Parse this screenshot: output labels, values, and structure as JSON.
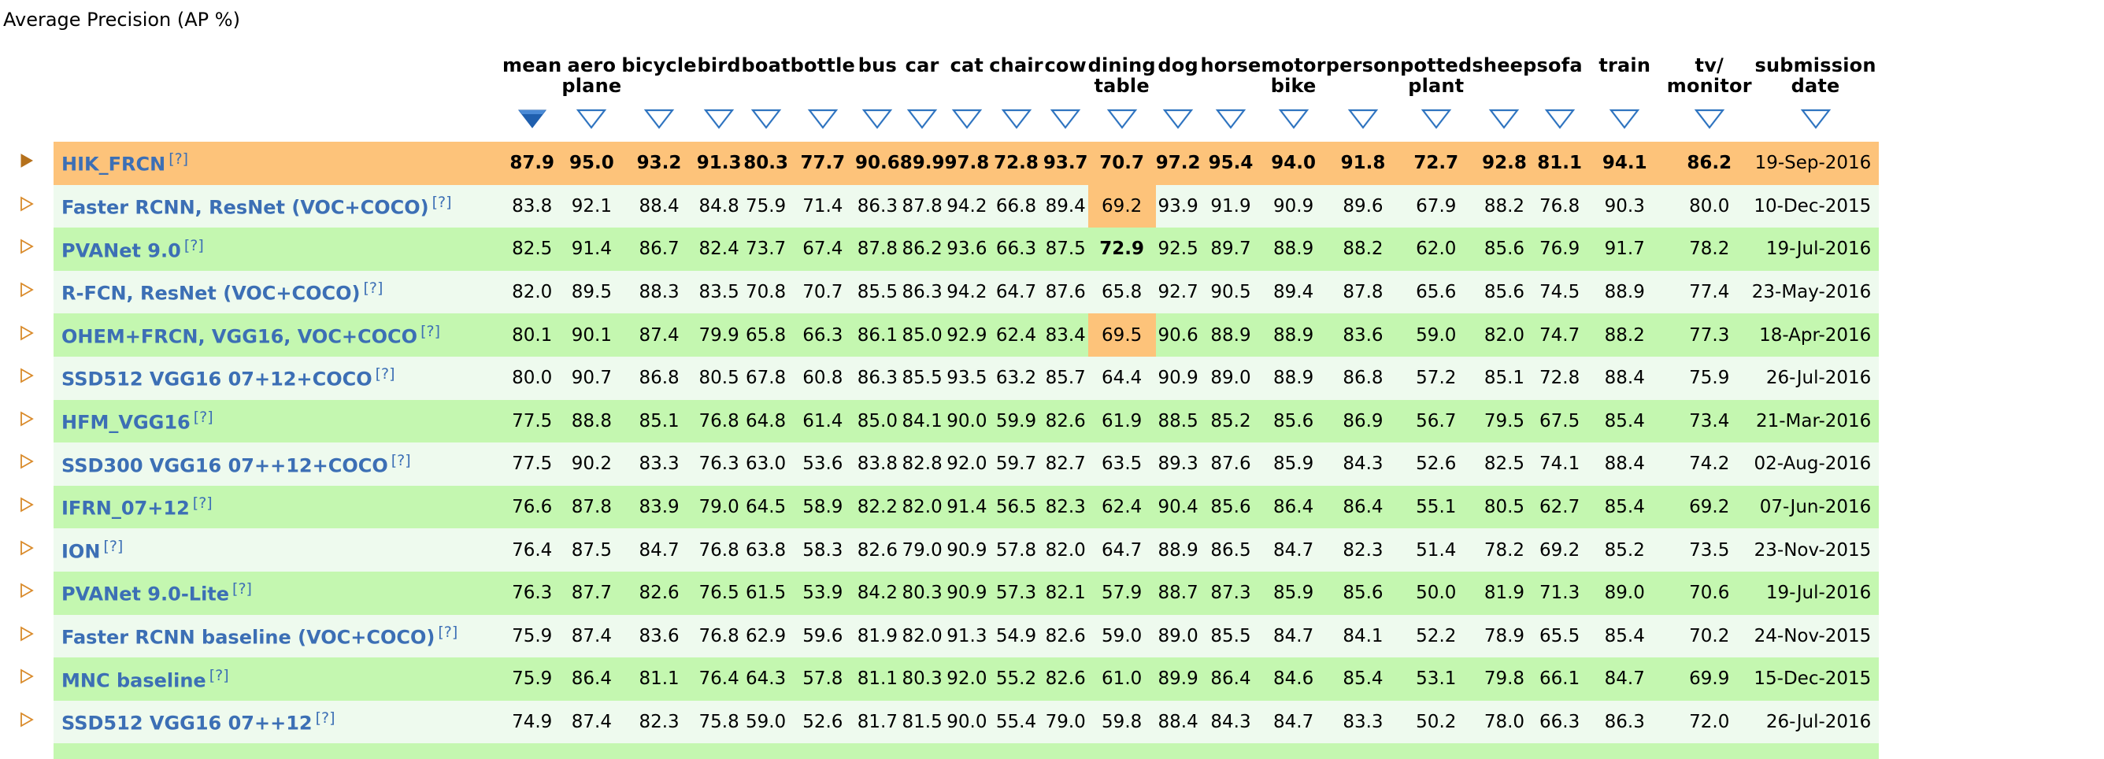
{
  "title": "Average Precision (AP %)",
  "columns": [
    {
      "key": "mean",
      "l1": "mean",
      "l2": ""
    },
    {
      "key": "aeroplane",
      "l1": "aero",
      "l2": "plane"
    },
    {
      "key": "bicycle",
      "l1": "bicycle",
      "l2": ""
    },
    {
      "key": "bird",
      "l1": "bird",
      "l2": ""
    },
    {
      "key": "boat",
      "l1": "boat",
      "l2": ""
    },
    {
      "key": "bottle",
      "l1": "bottle",
      "l2": ""
    },
    {
      "key": "bus",
      "l1": "bus",
      "l2": ""
    },
    {
      "key": "car",
      "l1": "car",
      "l2": ""
    },
    {
      "key": "cat",
      "l1": "cat",
      "l2": ""
    },
    {
      "key": "chair",
      "l1": "chair",
      "l2": ""
    },
    {
      "key": "cow",
      "l1": "cow",
      "l2": ""
    },
    {
      "key": "diningtable",
      "l1": "dining",
      "l2": "table"
    },
    {
      "key": "dog",
      "l1": "dog",
      "l2": ""
    },
    {
      "key": "horse",
      "l1": "horse",
      "l2": ""
    },
    {
      "key": "motorbike",
      "l1": "motor",
      "l2": "bike"
    },
    {
      "key": "person",
      "l1": "person",
      "l2": ""
    },
    {
      "key": "pottedplant",
      "l1": "potted",
      "l2": "plant"
    },
    {
      "key": "sheep",
      "l1": "sheep",
      "l2": ""
    },
    {
      "key": "sofa",
      "l1": "sofa",
      "l2": ""
    },
    {
      "key": "train",
      "l1": "train",
      "l2": ""
    },
    {
      "key": "tvmonitor",
      "l1": "tv/",
      "l2": "monitor"
    },
    {
      "key": "date",
      "l1": "submission",
      "l2": "date"
    }
  ],
  "sort_column": "mean",
  "colors": {
    "highlight": "#fdc37a",
    "row_green": "#c4f7b0",
    "row_light": "#eefaee",
    "link": "#3c6fb5",
    "arrow": "#2f74c0"
  },
  "help_marker": "[?]",
  "rows": [
    {
      "name": "HIK_FRCN",
      "values": [
        "87.9",
        "95.0",
        "93.2",
        "91.3",
        "80.3",
        "77.7",
        "90.6",
        "89.9",
        "97.8",
        "72.8",
        "93.7",
        "70.7",
        "97.2",
        "95.4",
        "94.0",
        "91.8",
        "72.7",
        "92.8",
        "81.1",
        "94.1",
        "86.2"
      ],
      "date": "19-Sep-2016"
    },
    {
      "name": "Faster RCNN, ResNet (VOC+COCO)",
      "values": [
        "83.8",
        "92.1",
        "88.4",
        "84.8",
        "75.9",
        "71.4",
        "86.3",
        "87.8",
        "94.2",
        "66.8",
        "89.4",
        "69.2",
        "93.9",
        "91.9",
        "90.9",
        "89.6",
        "67.9",
        "88.2",
        "76.8",
        "90.3",
        "80.0"
      ],
      "date": "10-Dec-2015"
    },
    {
      "name": "PVANet 9.0",
      "values": [
        "82.5",
        "91.4",
        "86.7",
        "82.4",
        "73.7",
        "67.4",
        "87.8",
        "86.2",
        "93.6",
        "66.3",
        "87.5",
        "72.9",
        "92.5",
        "89.7",
        "88.9",
        "88.2",
        "62.0",
        "85.6",
        "76.9",
        "91.7",
        "78.2"
      ],
      "date": "19-Jul-2016"
    },
    {
      "name": "R-FCN, ResNet (VOC+COCO)",
      "values": [
        "82.0",
        "89.5",
        "88.3",
        "83.5",
        "70.8",
        "70.7",
        "85.5",
        "86.3",
        "94.2",
        "64.7",
        "87.6",
        "65.8",
        "92.7",
        "90.5",
        "89.4",
        "87.8",
        "65.6",
        "85.6",
        "74.5",
        "88.9",
        "77.4"
      ],
      "date": "23-May-2016"
    },
    {
      "name": "OHEM+FRCN, VGG16, VOC+COCO",
      "values": [
        "80.1",
        "90.1",
        "87.4",
        "79.9",
        "65.8",
        "66.3",
        "86.1",
        "85.0",
        "92.9",
        "62.4",
        "83.4",
        "69.5",
        "90.6",
        "88.9",
        "88.9",
        "83.6",
        "59.0",
        "82.0",
        "74.7",
        "88.2",
        "77.3"
      ],
      "date": "18-Apr-2016"
    },
    {
      "name": "SSD512 VGG16 07+12+COCO",
      "values": [
        "80.0",
        "90.7",
        "86.8",
        "80.5",
        "67.8",
        "60.8",
        "86.3",
        "85.5",
        "93.5",
        "63.2",
        "85.7",
        "64.4",
        "90.9",
        "89.0",
        "88.9",
        "86.8",
        "57.2",
        "85.1",
        "72.8",
        "88.4",
        "75.9"
      ],
      "date": "26-Jul-2016"
    },
    {
      "name": "HFM_VGG16",
      "values": [
        "77.5",
        "88.8",
        "85.1",
        "76.8",
        "64.8",
        "61.4",
        "85.0",
        "84.1",
        "90.0",
        "59.9",
        "82.6",
        "61.9",
        "88.5",
        "85.2",
        "85.6",
        "86.9",
        "56.7",
        "79.5",
        "67.5",
        "85.4",
        "73.4"
      ],
      "date": "21-Mar-2016"
    },
    {
      "name": "SSD300 VGG16 07++12+COCO",
      "values": [
        "77.5",
        "90.2",
        "83.3",
        "76.3",
        "63.0",
        "53.6",
        "83.8",
        "82.8",
        "92.0",
        "59.7",
        "82.7",
        "63.5",
        "89.3",
        "87.6",
        "85.9",
        "84.3",
        "52.6",
        "82.5",
        "74.1",
        "88.4",
        "74.2"
      ],
      "date": "02-Aug-2016"
    },
    {
      "name": "IFRN_07+12",
      "values": [
        "76.6",
        "87.8",
        "83.9",
        "79.0",
        "64.5",
        "58.9",
        "82.2",
        "82.0",
        "91.4",
        "56.5",
        "82.3",
        "62.4",
        "90.4",
        "85.6",
        "86.4",
        "86.4",
        "55.1",
        "80.5",
        "62.7",
        "85.4",
        "69.2"
      ],
      "date": "07-Jun-2016"
    },
    {
      "name": "ION",
      "values": [
        "76.4",
        "87.5",
        "84.7",
        "76.8",
        "63.8",
        "58.3",
        "82.6",
        "79.0",
        "90.9",
        "57.8",
        "82.0",
        "64.7",
        "88.9",
        "86.5",
        "84.7",
        "82.3",
        "51.4",
        "78.2",
        "69.2",
        "85.2",
        "73.5"
      ],
      "date": "23-Nov-2015"
    },
    {
      "name": "PVANet 9.0-Lite",
      "values": [
        "76.3",
        "87.7",
        "82.6",
        "76.5",
        "61.5",
        "53.9",
        "84.2",
        "80.3",
        "90.9",
        "57.3",
        "82.1",
        "57.9",
        "88.7",
        "87.3",
        "85.9",
        "85.6",
        "50.0",
        "81.9",
        "71.3",
        "89.0",
        "70.6"
      ],
      "date": "19-Jul-2016"
    },
    {
      "name": "Faster RCNN baseline (VOC+COCO)",
      "values": [
        "75.9",
        "87.4",
        "83.6",
        "76.8",
        "62.9",
        "59.6",
        "81.9",
        "82.0",
        "91.3",
        "54.9",
        "82.6",
        "59.0",
        "89.0",
        "85.5",
        "84.7",
        "84.1",
        "52.2",
        "78.9",
        "65.5",
        "85.4",
        "70.2"
      ],
      "date": "24-Nov-2015"
    },
    {
      "name": "MNC baseline",
      "values": [
        "75.9",
        "86.4",
        "81.1",
        "76.4",
        "64.3",
        "57.8",
        "81.1",
        "80.3",
        "92.0",
        "55.2",
        "82.6",
        "61.0",
        "89.9",
        "86.4",
        "84.6",
        "85.4",
        "53.1",
        "79.8",
        "66.1",
        "84.7",
        "69.9"
      ],
      "date": "15-Dec-2015"
    },
    {
      "name": "SSD512 VGG16 07++12",
      "values": [
        "74.9",
        "87.4",
        "82.3",
        "75.8",
        "59.0",
        "52.6",
        "81.7",
        "81.5",
        "90.0",
        "55.4",
        "79.0",
        "59.8",
        "88.4",
        "84.3",
        "84.7",
        "83.3",
        "50.2",
        "78.0",
        "66.3",
        "86.3",
        "72.0"
      ],
      "date": "26-Jul-2016"
    }
  ],
  "cell_highlights": [
    {
      "row": 1,
      "col": 11
    },
    {
      "row": 4,
      "col": 11
    }
  ],
  "cell_bold": [
    {
      "row": 2,
      "col": 11
    }
  ]
}
